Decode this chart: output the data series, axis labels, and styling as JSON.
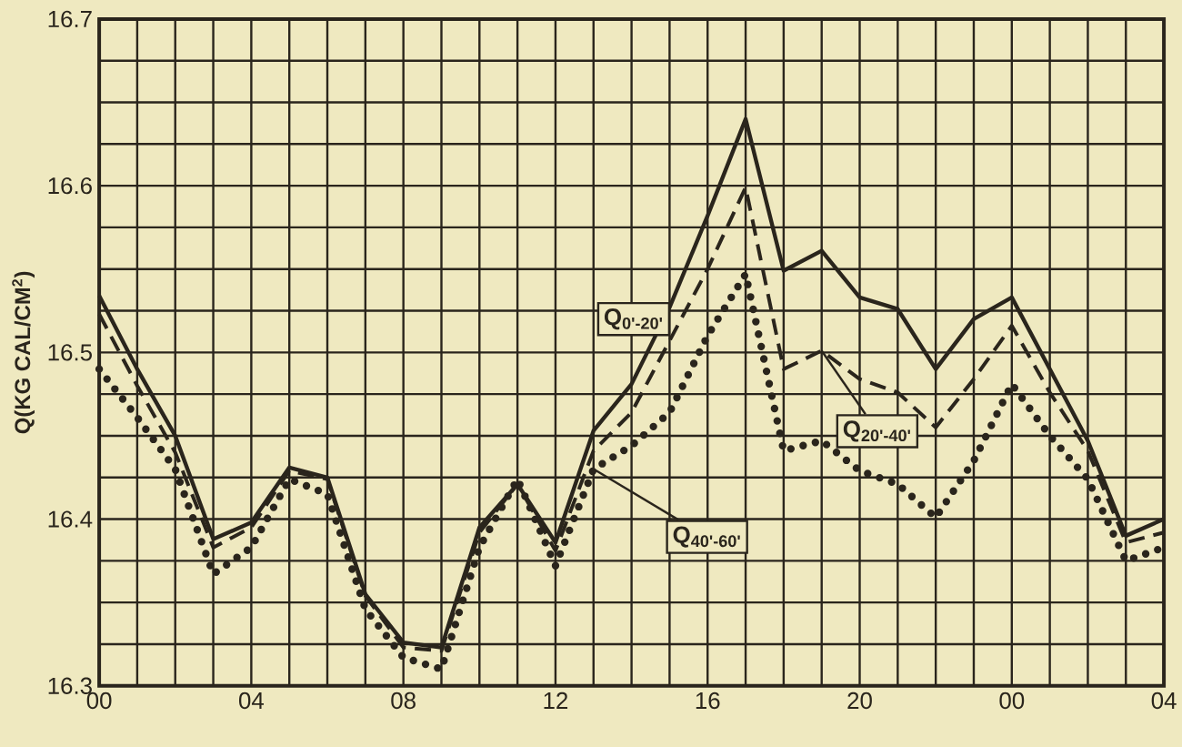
{
  "chart_data": {
    "type": "line",
    "ylabel": "Q(KG CAL/CM$^{2}$)",
    "x": [
      0,
      1,
      2,
      3,
      4,
      5,
      6,
      7,
      8,
      9,
      10,
      11,
      12,
      13,
      14,
      15,
      16,
      17,
      18,
      19,
      20,
      21,
      22,
      23,
      24,
      25,
      26,
      27,
      28
    ],
    "series": [
      {
        "name": "Q$_{0'-20'}$",
        "color": "#2a251c",
        "line_style": "solid",
        "values": [
          16.534,
          16.49,
          16.45,
          16.388,
          16.398,
          16.431,
          16.425,
          16.355,
          16.326,
          16.323,
          16.395,
          16.421,
          16.386,
          16.453,
          16.481,
          16.527,
          16.582,
          16.64,
          16.549,
          16.561,
          16.533,
          16.526,
          16.49,
          16.52,
          16.533,
          16.49,
          16.447,
          16.39,
          16.4
        ]
      },
      {
        "name": "Q$_{20'-40'}$",
        "color": "#2a251c",
        "line_style": "dashed",
        "values": [
          16.523,
          16.48,
          16.44,
          16.383,
          16.395,
          16.429,
          16.424,
          16.354,
          16.323,
          16.321,
          16.392,
          16.421,
          16.381,
          16.441,
          16.464,
          16.507,
          16.55,
          16.599,
          16.49,
          16.501,
          16.484,
          16.476,
          16.455,
          16.484,
          16.516,
          16.476,
          16.441,
          16.386,
          16.392
        ]
      },
      {
        "name": "Q$_{40'-60'}$",
        "color": "#2a251c",
        "line_style": "dotted",
        "values": [
          16.49,
          16.461,
          16.43,
          16.367,
          16.383,
          16.424,
          16.415,
          16.346,
          16.317,
          16.31,
          16.383,
          16.424,
          16.372,
          16.43,
          16.444,
          16.464,
          16.51,
          16.547,
          16.441,
          16.447,
          16.429,
          16.421,
          16.401,
          16.435,
          16.481,
          16.45,
          16.424,
          16.375,
          16.383
        ]
      }
    ],
    "xlim": [
      0,
      28
    ],
    "ylim": [
      16.3,
      16.7
    ],
    "xticks": [
      {
        "value": 0,
        "label": "00"
      },
      {
        "value": 1,
        "label": null
      },
      {
        "value": 2,
        "label": null
      },
      {
        "value": 3,
        "label": null
      },
      {
        "value": 4,
        "label": "04"
      },
      {
        "value": 5,
        "label": null
      },
      {
        "value": 6,
        "label": null
      },
      {
        "value": 7,
        "label": null
      },
      {
        "value": 8,
        "label": "08"
      },
      {
        "value": 9,
        "label": null
      },
      {
        "value": 10,
        "label": null
      },
      {
        "value": 11,
        "label": null
      },
      {
        "value": 12,
        "label": "12"
      },
      {
        "value": 13,
        "label": null
      },
      {
        "value": 14,
        "label": null
      },
      {
        "value": 15,
        "label": null
      },
      {
        "value": 16,
        "label": "16"
      },
      {
        "value": 17,
        "label": null
      },
      {
        "value": 18,
        "label": null
      },
      {
        "value": 19,
        "label": null
      },
      {
        "value": 20,
        "label": "20"
      },
      {
        "value": 21,
        "label": null
      },
      {
        "value": 22,
        "label": null
      },
      {
        "value": 23,
        "label": null
      },
      {
        "value": 24,
        "label": "00"
      },
      {
        "value": 25,
        "label": null
      },
      {
        "value": 26,
        "label": null
      },
      {
        "value": 27,
        "label": null
      },
      {
        "value": 28,
        "label": "04"
      }
    ],
    "yticks": [
      16.3,
      {
        "value": 16.325,
        "label": null
      },
      {
        "value": 16.35,
        "label": null
      },
      {
        "value": 16.375,
        "label": null
      },
      16.4,
      {
        "value": 16.425,
        "label": null
      },
      {
        "value": 16.45,
        "label": null
      },
      {
        "value": 16.475,
        "label": null
      },
      16.5,
      {
        "value": 16.525,
        "label": null
      },
      {
        "value": 16.55,
        "label": null
      },
      {
        "value": 16.575,
        "label": null
      },
      16.6,
      {
        "value": 16.625,
        "label": null
      },
      {
        "value": 16.65,
        "label": null
      },
      {
        "value": 16.675,
        "label": null
      },
      16.7
    ],
    "grid": true,
    "marker": "none"
  }
}
